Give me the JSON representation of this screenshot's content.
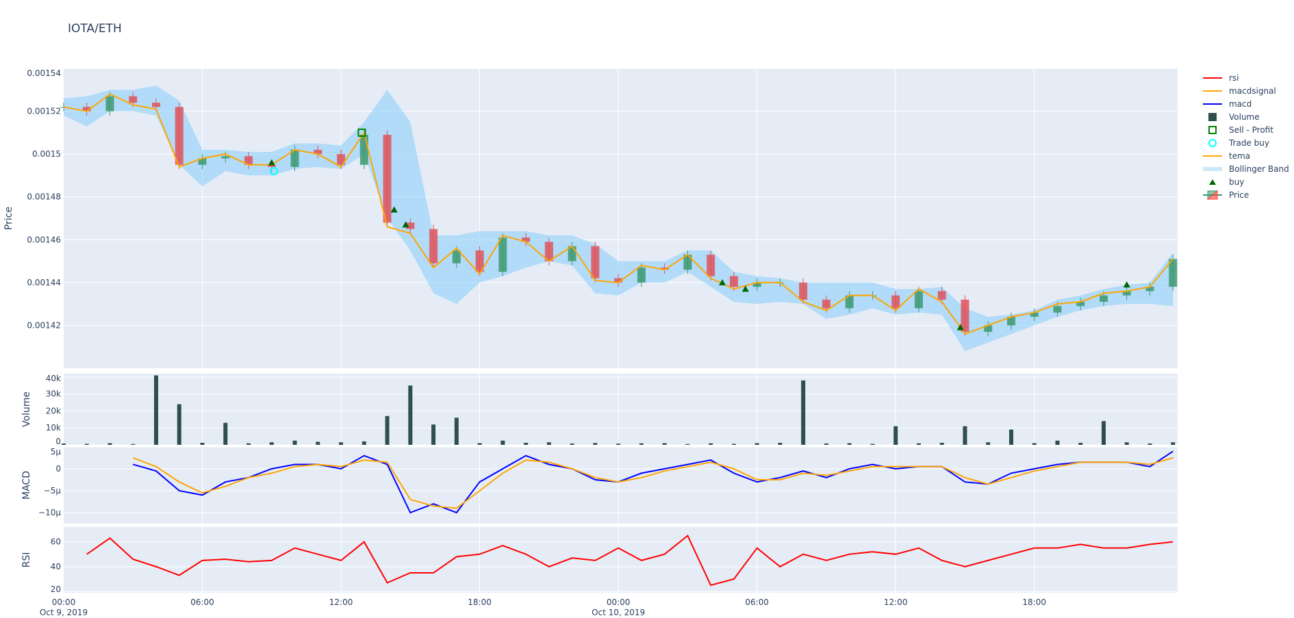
{
  "title": "IOTA/ETH",
  "legend": [
    {
      "name": "rsi",
      "kind": "line",
      "color": "#ff0000"
    },
    {
      "name": "macdsignal",
      "kind": "line",
      "color": "#ffa500"
    },
    {
      "name": "macd",
      "kind": "line",
      "color": "#0000ff"
    },
    {
      "name": "Volume",
      "kind": "bar",
      "color": "#2f4f4f"
    },
    {
      "name": "Sell - Profit",
      "kind": "square-open",
      "color": "#008000"
    },
    {
      "name": "Trade buy",
      "kind": "circle-open",
      "color": "#00ffff"
    },
    {
      "name": "tema",
      "kind": "line",
      "color": "#ffa500"
    },
    {
      "name": "Bollinger Band",
      "kind": "band",
      "color": "#b8def5"
    },
    {
      "name": "buy",
      "kind": "triangle",
      "color": "#006400"
    },
    {
      "name": "Price",
      "kind": "candle",
      "color": "#3d9970"
    }
  ],
  "chart_data": {
    "type": "candlestick+indicators",
    "x_start": "2019-10-09 00:00",
    "x_step_hours": 1,
    "x_ticks": [
      {
        "h": 0,
        "label": "00:00",
        "sub": "Oct 9, 2019"
      },
      {
        "h": 6,
        "label": "06:00",
        "sub": ""
      },
      {
        "h": 12,
        "label": "12:00",
        "sub": ""
      },
      {
        "h": 18,
        "label": "18:00",
        "sub": ""
      },
      {
        "h": 24,
        "label": "00:00",
        "sub": "Oct 10, 2019"
      },
      {
        "h": 30,
        "label": "06:00",
        "sub": ""
      },
      {
        "h": 36,
        "label": "12:00",
        "sub": ""
      },
      {
        "h": 42,
        "label": "18:00",
        "sub": ""
      }
    ],
    "x_range_hours": [
      0,
      48.2
    ],
    "price": {
      "ylabel": "Price",
      "ylim": [
        0.0014,
        0.00154
      ],
      "ticks": [
        "0.00142",
        "0.00144",
        "0.00146",
        "0.00148",
        "0.0015",
        "0.00152",
        "0.00154"
      ],
      "close": [
        0.001522,
        0.00152,
        0.001527,
        0.001524,
        0.001522,
        0.001495,
        0.001498,
        0.001499,
        0.001495,
        0.001494,
        0.001502,
        0.0015,
        0.001495,
        0.001509,
        0.001468,
        0.001465,
        0.001449,
        0.001455,
        0.001445,
        0.001461,
        0.001459,
        0.00145,
        0.001457,
        0.001442,
        0.00144,
        0.001447,
        0.001446,
        0.001453,
        0.001443,
        0.001438,
        0.00144,
        0.00144,
        0.001432,
        0.001428,
        0.001434,
        0.001434,
        0.001428,
        0.001436,
        0.001432,
        0.001417,
        0.00142,
        0.001424,
        0.001426,
        0.001429,
        0.001431,
        0.001434,
        0.001436,
        0.001438,
        0.001451
      ],
      "tema": [
        0.001522,
        0.00152,
        0.001528,
        0.001523,
        0.001521,
        0.001494,
        0.001498,
        0.0015,
        0.001495,
        0.001495,
        0.001502,
        0.0015,
        0.001494,
        0.00151,
        0.001466,
        0.001463,
        0.001447,
        0.001456,
        0.001444,
        0.001462,
        0.001459,
        0.00145,
        0.001457,
        0.001441,
        0.00144,
        0.001448,
        0.001446,
        0.001453,
        0.001442,
        0.001437,
        0.00144,
        0.00144,
        0.001431,
        0.001427,
        0.001434,
        0.001434,
        0.001427,
        0.001437,
        0.001431,
        0.001416,
        0.00142,
        0.001424,
        0.001426,
        0.00143,
        0.001431,
        0.001435,
        0.001436,
        0.001438,
        0.001451
      ],
      "bb_upper": [
        0.001526,
        0.001527,
        0.00153,
        0.00153,
        0.001532,
        0.001525,
        0.001502,
        0.001502,
        0.001501,
        0.001501,
        0.001505,
        0.001505,
        0.001504,
        0.001515,
        0.00153,
        0.001515,
        0.001462,
        0.001462,
        0.001464,
        0.001464,
        0.001464,
        0.001462,
        0.001462,
        0.001458,
        0.00145,
        0.00145,
        0.00145,
        0.001455,
        0.001455,
        0.001445,
        0.001443,
        0.001442,
        0.00144,
        0.00144,
        0.00144,
        0.00144,
        0.001437,
        0.001437,
        0.001438,
        0.001428,
        0.001424,
        0.001425,
        0.001427,
        0.001432,
        0.001434,
        0.001437,
        0.001439,
        0.00144,
        0.001454
      ],
      "bb_lower": [
        0.001518,
        0.001513,
        0.00152,
        0.00152,
        0.001518,
        0.001495,
        0.001485,
        0.001492,
        0.00149,
        0.00149,
        0.001493,
        0.001494,
        0.001493,
        0.0015,
        0.00147,
        0.001455,
        0.001435,
        0.00143,
        0.00144,
        0.001443,
        0.001447,
        0.00145,
        0.001448,
        0.001435,
        0.001434,
        0.00144,
        0.00144,
        0.001445,
        0.001438,
        0.001431,
        0.00143,
        0.001431,
        0.00143,
        0.001423,
        0.001425,
        0.001428,
        0.001425,
        0.001426,
        0.001425,
        0.001408,
        0.001412,
        0.001416,
        0.00142,
        0.001424,
        0.001427,
        0.001429,
        0.00143,
        0.00143,
        0.001429
      ],
      "buy": [
        [
          9,
          0.001496
        ],
        [
          14.3,
          0.001474
        ],
        [
          14.8,
          0.001467
        ],
        [
          28.5,
          0.00144
        ],
        [
          29.5,
          0.001437
        ],
        [
          38.8,
          0.001419
        ],
        [
          46,
          0.001439
        ]
      ],
      "trade_buy": [
        [
          9.1,
          0.001492
        ]
      ],
      "sell_profit": [
        [
          12.9,
          0.00151
        ]
      ]
    },
    "volume": {
      "ylabel": "Volume",
      "ylim": [
        0,
        42000
      ],
      "ticks": [
        {
          "v": 0,
          "label": "0"
        },
        {
          "v": 10000,
          "label": "10k"
        },
        {
          "v": 20000,
          "label": "20k"
        },
        {
          "v": 30000,
          "label": "30k"
        },
        {
          "v": 40000,
          "label": "40k"
        }
      ],
      "values": [
        800,
        600,
        1000,
        500,
        41000,
        24000,
        1200,
        13000,
        900,
        1500,
        2500,
        1800,
        1500,
        2000,
        17000,
        35000,
        12000,
        16000,
        1000,
        2500,
        1200,
        1500,
        800,
        1100,
        700,
        900,
        1000,
        500,
        900,
        600,
        1000,
        1200,
        38000,
        800,
        1000,
        600,
        11000,
        900,
        1200,
        11000,
        1500,
        9000,
        1000,
        2500,
        1200,
        14000,
        1500,
        800,
        1500
      ]
    },
    "macd": {
      "ylabel": "MACD",
      "ylim": [
        -1.25e-05,
        5e-06
      ],
      "ticks": [
        {
          "v": 5e-06,
          "label": "5µ"
        },
        {
          "v": 0,
          "label": "0"
        },
        {
          "v": -5e-06,
          "label": "−5µ"
        },
        {
          "v": -1e-05,
          "label": "−10µ"
        }
      ],
      "start_h": 3,
      "macd": [
        1,
        -0.5,
        -5,
        -6,
        -3,
        -2,
        0,
        1,
        1,
        0,
        3,
        1,
        -10,
        -8,
        -10,
        -3,
        0,
        3,
        1,
        0,
        -2.5,
        -3,
        -1,
        0,
        1,
        2,
        -1,
        -3,
        -2,
        -0.5,
        -2,
        0,
        1,
        0,
        0.5,
        0.5,
        -3,
        -3.5,
        -1,
        0,
        1,
        1.5,
        1.5,
        1.5,
        0.5,
        4
      ],
      "signal": [
        2.5,
        0.5,
        -3,
        -5.5,
        -4,
        -2,
        -1,
        0.5,
        1,
        0.5,
        2,
        1.5,
        -7,
        -8.5,
        -9,
        -5,
        -1,
        2,
        1.5,
        0,
        -2,
        -3,
        -2,
        -0.5,
        0.5,
        1.5,
        0,
        -2.5,
        -2.5,
        -1,
        -1.5,
        -0.5,
        0.5,
        0.5,
        0.5,
        0.5,
        -2,
        -3.5,
        -2,
        -0.5,
        0.5,
        1.5,
        1.5,
        1.5,
        1,
        2.5
      ],
      "unit": 1e-06
    },
    "rsi": {
      "ylabel": "RSI",
      "ylim": [
        19,
        72
      ],
      "ticks": [
        20,
        40,
        60
      ],
      "start_h": 1,
      "values": [
        50,
        63,
        46,
        40,
        33,
        45,
        46,
        44,
        45,
        55,
        50,
        45,
        60,
        27,
        35,
        35,
        48,
        50,
        57,
        50,
        40,
        47,
        45,
        55,
        45,
        50,
        65,
        25,
        30,
        55,
        40,
        50,
        45,
        50,
        52,
        50,
        55,
        45,
        40,
        45,
        50,
        55,
        55,
        58,
        55,
        55,
        58,
        60
      ]
    }
  }
}
